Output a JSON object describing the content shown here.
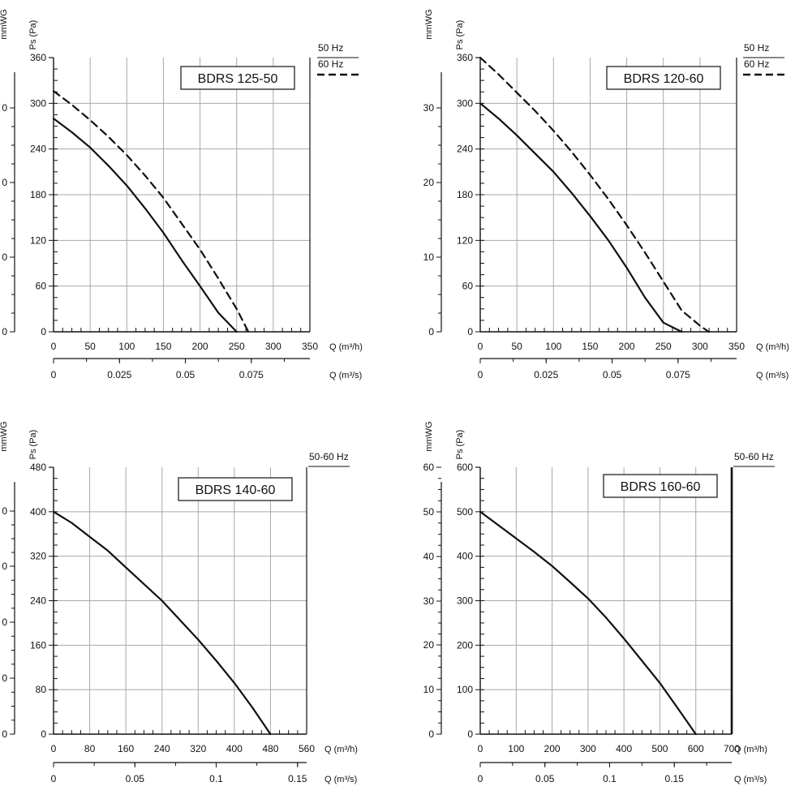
{
  "chart_data": [
    {
      "type": "line",
      "title": "BDRS 125-50",
      "ylabel": "Ps (Pa)",
      "ylabel2": "mmWG",
      "xlabel": "Q (m³/h)",
      "xlabel2": "Q (m³/s)",
      "xlim": [
        0,
        350
      ],
      "ylim": [
        0,
        360
      ],
      "x_ticks": [
        "0",
        "50",
        "100",
        "150",
        "200",
        "250",
        "300",
        "350"
      ],
      "y_ticks": [
        "0",
        "60",
        "120",
        "180",
        "240",
        "300",
        "360"
      ],
      "y2_ticks": [
        "0",
        "0",
        "0",
        "0"
      ],
      "x2_ticks": [
        "0",
        "0.025",
        "0.05",
        "0.075"
      ],
      "x2_values": [
        0,
        0.025,
        0.05,
        0.075
      ],
      "x2_max": 0.0972,
      "legend": [
        {
          "name": "50 Hz",
          "style": "solid"
        },
        {
          "name": "60 Hz",
          "style": "dashed"
        }
      ],
      "series": [
        {
          "name": "50 Hz",
          "style": "solid",
          "x": [
            0,
            25,
            50,
            75,
            100,
            125,
            150,
            175,
            200,
            225,
            250
          ],
          "y": [
            280,
            262,
            242,
            218,
            192,
            162,
            130,
            94,
            60,
            25,
            0
          ]
        },
        {
          "name": "60 Hz",
          "style": "dashed",
          "x": [
            0,
            25,
            50,
            75,
            100,
            125,
            150,
            175,
            200,
            225,
            250,
            266
          ],
          "y": [
            316,
            298,
            278,
            256,
            232,
            205,
            176,
            142,
            108,
            70,
            30,
            0
          ]
        }
      ]
    },
    {
      "type": "line",
      "title": "BDRS 120-60",
      "ylabel": "Ps (Pa)",
      "ylabel2": "mmWG",
      "xlabel": "Q (m³/h)",
      "xlabel2": "Q (m³/s)",
      "xlim": [
        0,
        350
      ],
      "ylim": [
        0,
        360
      ],
      "x_ticks": [
        "0",
        "50",
        "100",
        "150",
        "200",
        "250",
        "300",
        "350"
      ],
      "y_ticks": [
        "0",
        "60",
        "120",
        "180",
        "240",
        "300",
        "360"
      ],
      "y2_ticks": [
        "0",
        "10",
        "20",
        "30"
      ],
      "x2_ticks": [
        "0",
        "0.025",
        "0.05",
        "0.075"
      ],
      "x2_values": [
        0,
        0.025,
        0.05,
        0.075
      ],
      "x2_max": 0.0972,
      "legend": [
        {
          "name": "50 Hz",
          "style": "solid"
        },
        {
          "name": "60 Hz",
          "style": "dashed"
        }
      ],
      "series": [
        {
          "name": "50 Hz",
          "style": "solid",
          "x": [
            0,
            25,
            50,
            75,
            100,
            125,
            150,
            175,
            200,
            225,
            250,
            275
          ],
          "y": [
            300,
            280,
            258,
            234,
            210,
            182,
            152,
            120,
            84,
            45,
            12,
            0
          ]
        },
        {
          "name": "60 Hz",
          "style": "dashed",
          "x": [
            0,
            25,
            50,
            75,
            100,
            125,
            150,
            175,
            200,
            225,
            250,
            275,
            300,
            312
          ],
          "y": [
            360,
            338,
            314,
            290,
            264,
            236,
            206,
            174,
            140,
            104,
            66,
            28,
            8,
            0
          ]
        }
      ]
    },
    {
      "type": "line",
      "title": "BDRS 140-60",
      "ylabel": "Ps (Pa)",
      "ylabel2": "mmWG",
      "xlabel": "Q (m³/h)",
      "xlabel2": "Q (m³/s)",
      "xlim": [
        0,
        560
      ],
      "ylim": [
        0,
        480
      ],
      "x_ticks": [
        "0",
        "80",
        "160",
        "240",
        "320",
        "400",
        "480",
        "560"
      ],
      "y_ticks": [
        "0",
        "80",
        "160",
        "240",
        "320",
        "400",
        "480"
      ],
      "y2_ticks": [
        "0",
        "0",
        "0",
        "0",
        "0"
      ],
      "x2_ticks": [
        "0",
        "0.05",
        "0.1",
        "0.15"
      ],
      "x2_values": [
        0,
        0.05,
        0.1,
        0.15
      ],
      "x2_max": 0.1556,
      "legend": [
        {
          "name": "50-60 Hz",
          "style": "solid"
        }
      ],
      "series": [
        {
          "name": "50-60 Hz",
          "style": "solid",
          "x": [
            0,
            40,
            80,
            120,
            160,
            200,
            240,
            280,
            320,
            360,
            400,
            440,
            480
          ],
          "y": [
            400,
            380,
            355,
            330,
            300,
            270,
            240,
            205,
            170,
            132,
            92,
            48,
            0
          ]
        }
      ]
    },
    {
      "type": "line",
      "title": "BDRS 160-60",
      "ylabel": "Ps (Pa)",
      "ylabel2": "mmWG",
      "xlabel": "Q (m³/h)",
      "xlabel2": "Q (m³/s)",
      "xlim": [
        0,
        700
      ],
      "ylim": [
        0,
        600
      ],
      "x_ticks": [
        "0",
        "100",
        "200",
        "300",
        "400",
        "500",
        "600",
        "700"
      ],
      "y_ticks": [
        "0",
        "100",
        "200",
        "300",
        "400",
        "500",
        "600"
      ],
      "y2_ticks": [
        "0",
        "10",
        "20",
        "30",
        "40",
        "50",
        "60"
      ],
      "x2_ticks": [
        "0",
        "0.05",
        "0.1",
        "0.15"
      ],
      "x2_values": [
        0,
        0.05,
        0.1,
        0.15
      ],
      "x2_max": 0.1944,
      "legend": [
        {
          "name": "50-60 Hz",
          "style": "solid"
        }
      ],
      "series": [
        {
          "name": "50-60 Hz",
          "style": "solid",
          "x": [
            0,
            50,
            100,
            150,
            200,
            250,
            300,
            350,
            400,
            450,
            500,
            550,
            600
          ],
          "y": [
            500,
            470,
            440,
            410,
            378,
            342,
            305,
            262,
            215,
            165,
            115,
            58,
            0
          ]
        }
      ]
    }
  ]
}
